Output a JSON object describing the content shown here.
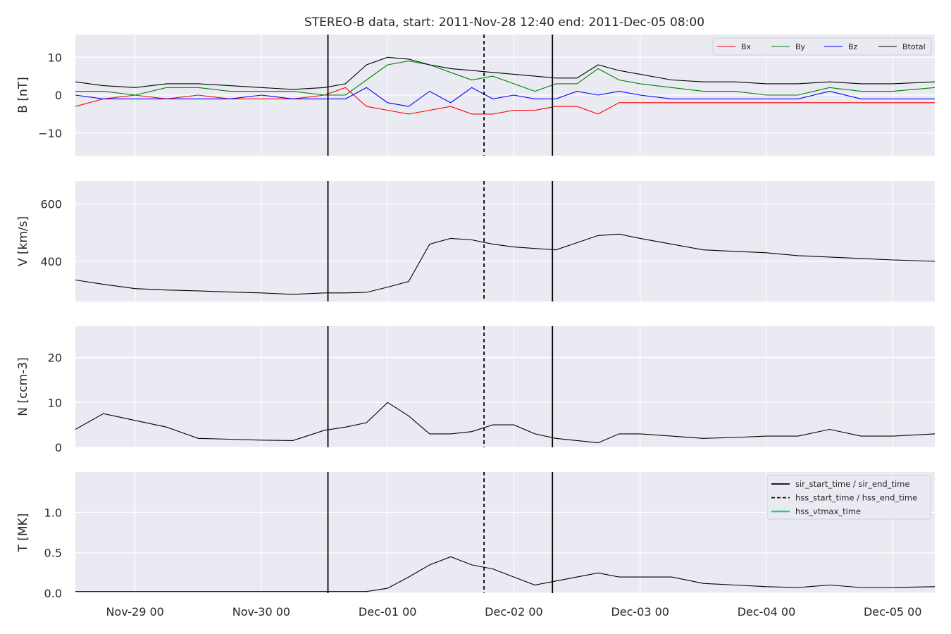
{
  "figure": {
    "title": "STEREO-B data, start: 2011-Nov-28 12:40  end: 2011-Dec-05 08:00"
  },
  "x_axis": {
    "start": "2011-11-28 12:40",
    "end": "2011-12-05 08:00",
    "ticks": [
      {
        "label": "Nov-29 00",
        "time": "2011-11-29 00:00"
      },
      {
        "label": "Nov-30 00",
        "time": "2011-11-30 00:00"
      },
      {
        "label": "Dec-01 00",
        "time": "2011-12-01 00:00"
      },
      {
        "label": "Dec-02 00",
        "time": "2011-12-02 00:00"
      },
      {
        "label": "Dec-03 00",
        "time": "2011-12-03 00:00"
      },
      {
        "label": "Dec-04 00",
        "time": "2011-12-04 00:00"
      },
      {
        "label": "Dec-05 00",
        "time": "2011-12-05 00:00"
      }
    ]
  },
  "event_lines": {
    "sir_start_time": "2011-11-30 12:40",
    "sir_end_time": "2011-12-02 07:20",
    "hss_start_time": "2011-12-01 18:20",
    "hss_end_time": "2011-12-01 18:20"
  },
  "legend_lines": {
    "entries": [
      {
        "label": "sir_start_time / sir_end_time",
        "color": "#000000",
        "style": "solid"
      },
      {
        "label": "hss_start_time / hss_end_time",
        "color": "#000000",
        "style": "dashed"
      },
      {
        "label": "hss_vtmax_time",
        "color": "#2ecc71",
        "style": "solid"
      }
    ]
  },
  "chart_data": [
    {
      "type": "line",
      "ylabel": "B [nT]",
      "ylim": [
        -16,
        16
      ],
      "yticks": [
        {
          "value": -10,
          "label": "−10"
        },
        {
          "value": 0,
          "label": "0"
        },
        {
          "value": 10,
          "label": "10"
        }
      ],
      "grid": true,
      "legend": {
        "placement": "top-right",
        "columns": 4
      },
      "x": [
        "2011-11-28 12:40",
        "2011-11-28 18:00",
        "2011-11-29 00:00",
        "2011-11-29 06:00",
        "2011-11-29 12:00",
        "2011-11-29 18:00",
        "2011-11-30 00:00",
        "2011-11-30 06:00",
        "2011-11-30 12:00",
        "2011-11-30 16:00",
        "2011-11-30 20:00",
        "2011-12-01 00:00",
        "2011-12-01 04:00",
        "2011-12-01 08:00",
        "2011-12-01 12:00",
        "2011-12-01 16:00",
        "2011-12-01 20:00",
        "2011-12-02 00:00",
        "2011-12-02 04:00",
        "2011-12-02 08:00",
        "2011-12-02 12:00",
        "2011-12-02 16:00",
        "2011-12-02 20:00",
        "2011-12-03 00:00",
        "2011-12-03 06:00",
        "2011-12-03 12:00",
        "2011-12-03 18:00",
        "2011-12-04 00:00",
        "2011-12-04 06:00",
        "2011-12-04 12:00",
        "2011-12-04 18:00",
        "2011-12-05 00:00",
        "2011-12-05 08:00"
      ],
      "series": [
        {
          "name": "Bx",
          "color": "#ff0000",
          "values": [
            -3,
            -1,
            0,
            -1,
            0,
            -1,
            -1,
            -1,
            0,
            2,
            -3,
            -4,
            -5,
            -4,
            -3,
            -5,
            -5,
            -4,
            -4,
            -3,
            -3,
            -5,
            -2,
            -2,
            -2,
            -2,
            -2,
            -2,
            -2,
            -2,
            -2,
            -2,
            -2
          ]
        },
        {
          "name": "By",
          "color": "#008000",
          "values": [
            1,
            1,
            0,
            2,
            2,
            1,
            1,
            1,
            0,
            0,
            4,
            8,
            9,
            8,
            6,
            4,
            5,
            3,
            1,
            3,
            3,
            7,
            4,
            3,
            2,
            1,
            1,
            0,
            0,
            2,
            1,
            1,
            2
          ]
        },
        {
          "name": "Bz",
          "color": "#0000ff",
          "values": [
            0,
            -1,
            -1,
            -1,
            -1,
            -1,
            0,
            -1,
            -1,
            -1,
            2,
            -2,
            -3,
            1,
            -2,
            2,
            -1,
            0,
            -1,
            -1,
            1,
            0,
            1,
            0,
            -1,
            -1,
            -1,
            -1,
            -1,
            1,
            -1,
            -1,
            -1
          ]
        },
        {
          "name": "Btotal",
          "color": "#000000",
          "values": [
            3.5,
            2.5,
            2,
            3,
            3,
            2.5,
            2,
            1.5,
            2,
            3,
            8,
            10,
            9.5,
            8,
            7,
            6.5,
            6,
            5.5,
            5,
            4.5,
            4.5,
            8,
            6.5,
            5.5,
            4,
            3.5,
            3.5,
            3,
            3,
            3.5,
            3,
            3,
            3.5
          ]
        }
      ]
    },
    {
      "type": "line",
      "ylabel": "V [km/s]",
      "ylim": [
        260,
        680
      ],
      "yticks": [
        {
          "value": 400,
          "label": "400"
        },
        {
          "value": 600,
          "label": "600"
        }
      ],
      "grid": true,
      "x": [
        "2011-11-28 12:40",
        "2011-11-28 18:00",
        "2011-11-29 00:00",
        "2011-11-29 06:00",
        "2011-11-29 12:00",
        "2011-11-29 18:00",
        "2011-11-30 00:00",
        "2011-11-30 06:00",
        "2011-11-30 12:00",
        "2011-11-30 16:00",
        "2011-11-30 20:00",
        "2011-12-01 00:00",
        "2011-12-01 04:00",
        "2011-12-01 08:00",
        "2011-12-01 12:00",
        "2011-12-01 16:00",
        "2011-12-01 20:00",
        "2011-12-02 00:00",
        "2011-12-02 04:00",
        "2011-12-02 08:00",
        "2011-12-02 12:00",
        "2011-12-02 16:00",
        "2011-12-02 20:00",
        "2011-12-03 00:00",
        "2011-12-03 06:00",
        "2011-12-03 12:00",
        "2011-12-03 18:00",
        "2011-12-04 00:00",
        "2011-12-04 06:00",
        "2011-12-04 12:00",
        "2011-12-04 18:00",
        "2011-12-05 00:00",
        "2011-12-05 08:00"
      ],
      "series": [
        {
          "name": "V",
          "color": "#000000",
          "values": [
            335,
            320,
            305,
            300,
            297,
            293,
            290,
            285,
            290,
            290,
            292,
            310,
            330,
            460,
            480,
            475,
            460,
            450,
            445,
            440,
            465,
            490,
            495,
            480,
            460,
            440,
            435,
            430,
            420,
            415,
            410,
            405,
            400
          ]
        }
      ]
    },
    {
      "type": "line",
      "ylabel": "N [ccm-3]",
      "ylim": [
        0,
        27
      ],
      "yticks": [
        {
          "value": 0,
          "label": "0"
        },
        {
          "value": 10,
          "label": "10"
        },
        {
          "value": 20,
          "label": "20"
        }
      ],
      "grid": true,
      "x": [
        "2011-11-28 12:40",
        "2011-11-28 18:00",
        "2011-11-29 00:00",
        "2011-11-29 06:00",
        "2011-11-29 12:00",
        "2011-11-29 18:00",
        "2011-11-30 00:00",
        "2011-11-30 06:00",
        "2011-11-30 12:00",
        "2011-11-30 16:00",
        "2011-11-30 20:00",
        "2011-12-01 00:00",
        "2011-12-01 04:00",
        "2011-12-01 08:00",
        "2011-12-01 12:00",
        "2011-12-01 16:00",
        "2011-12-01 20:00",
        "2011-12-02 00:00",
        "2011-12-02 04:00",
        "2011-12-02 08:00",
        "2011-12-02 12:00",
        "2011-12-02 16:00",
        "2011-12-02 20:00",
        "2011-12-03 00:00",
        "2011-12-03 06:00",
        "2011-12-03 12:00",
        "2011-12-03 18:00",
        "2011-12-04 00:00",
        "2011-12-04 06:00",
        "2011-12-04 12:00",
        "2011-12-04 18:00",
        "2011-12-05 00:00",
        "2011-12-05 08:00"
      ],
      "series": [
        {
          "name": "N",
          "color": "#000000",
          "values": [
            4,
            7.5,
            6,
            4.5,
            2,
            1.8,
            1.6,
            1.5,
            3.8,
            4.5,
            5.5,
            10,
            7,
            3,
            3,
            3.5,
            5,
            5,
            3,
            2,
            1.5,
            1,
            3,
            3,
            2.5,
            2,
            2.2,
            2.5,
            2.5,
            4,
            2.5,
            2.5,
            3
          ]
        }
      ]
    },
    {
      "type": "line",
      "ylabel": "T [MK]",
      "ylim": [
        0,
        1.5
      ],
      "yticks": [
        {
          "value": 0,
          "label": "0.0"
        },
        {
          "value": 0.5,
          "label": "0.5"
        },
        {
          "value": 1.0,
          "label": "1.0"
        }
      ],
      "grid": true,
      "legend": {
        "placement": "top-right"
      },
      "x": [
        "2011-11-28 12:40",
        "2011-11-28 18:00",
        "2011-11-29 00:00",
        "2011-11-29 06:00",
        "2011-11-29 12:00",
        "2011-11-29 18:00",
        "2011-11-30 00:00",
        "2011-11-30 06:00",
        "2011-11-30 12:00",
        "2011-11-30 16:00",
        "2011-11-30 20:00",
        "2011-12-01 00:00",
        "2011-12-01 04:00",
        "2011-12-01 08:00",
        "2011-12-01 12:00",
        "2011-12-01 16:00",
        "2011-12-01 20:00",
        "2011-12-02 00:00",
        "2011-12-02 04:00",
        "2011-12-02 08:00",
        "2011-12-02 12:00",
        "2011-12-02 16:00",
        "2011-12-02 20:00",
        "2011-12-03 00:00",
        "2011-12-03 06:00",
        "2011-12-03 12:00",
        "2011-12-03 18:00",
        "2011-12-04 00:00",
        "2011-12-04 06:00",
        "2011-12-04 12:00",
        "2011-12-04 18:00",
        "2011-12-05 00:00",
        "2011-12-05 08:00"
      ],
      "series": [
        {
          "name": "T",
          "color": "#000000",
          "values": [
            0.02,
            0.02,
            0.02,
            0.02,
            0.02,
            0.02,
            0.02,
            0.02,
            0.02,
            0.02,
            0.02,
            0.06,
            0.2,
            0.35,
            0.45,
            0.35,
            0.3,
            0.2,
            0.1,
            0.15,
            0.2,
            0.25,
            0.2,
            0.2,
            0.2,
            0.12,
            0.1,
            0.08,
            0.07,
            0.1,
            0.07,
            0.07,
            0.08
          ]
        }
      ]
    }
  ]
}
